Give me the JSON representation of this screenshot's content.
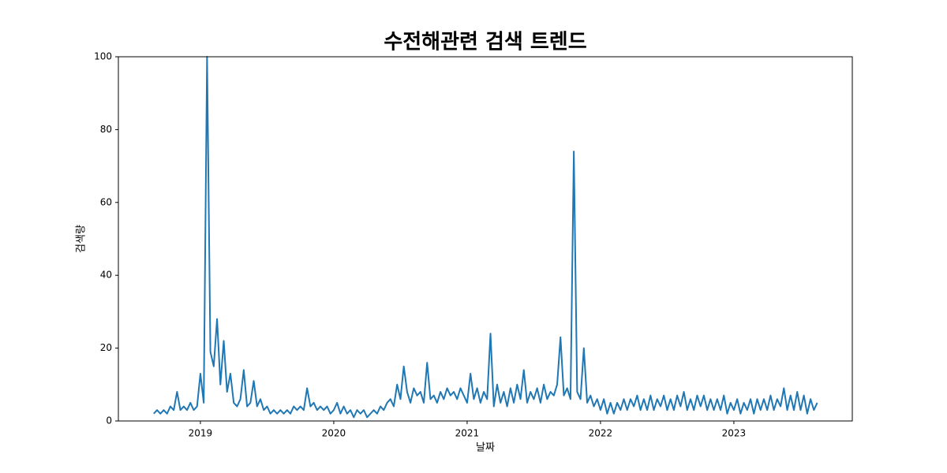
{
  "chart_data": {
    "type": "line",
    "title": "수전해관련 검색 트렌드",
    "xlabel": "날짜",
    "ylabel": "검색량",
    "x": [
      2018.65,
      2018.675,
      2018.7,
      2018.725,
      2018.75,
      2018.775,
      2018.8,
      2018.825,
      2018.85,
      2018.875,
      2018.9,
      2018.925,
      2018.95,
      2018.975,
      2019.0,
      2019.025,
      2019.05,
      2019.075,
      2019.1,
      2019.125,
      2019.15,
      2019.175,
      2019.2,
      2019.225,
      2019.25,
      2019.275,
      2019.3,
      2019.325,
      2019.35,
      2019.375,
      2019.4,
      2019.425,
      2019.45,
      2019.475,
      2019.5,
      2019.525,
      2019.55,
      2019.575,
      2019.6,
      2019.625,
      2019.65,
      2019.675,
      2019.7,
      2019.725,
      2019.75,
      2019.775,
      2019.8,
      2019.825,
      2019.85,
      2019.875,
      2019.9,
      2019.925,
      2019.95,
      2019.975,
      2020.0,
      2020.025,
      2020.05,
      2020.075,
      2020.1,
      2020.125,
      2020.15,
      2020.175,
      2020.2,
      2020.225,
      2020.25,
      2020.275,
      2020.3,
      2020.325,
      2020.35,
      2020.375,
      2020.4,
      2020.425,
      2020.45,
      2020.475,
      2020.5,
      2020.525,
      2020.55,
      2020.575,
      2020.6,
      2020.625,
      2020.65,
      2020.675,
      2020.7,
      2020.725,
      2020.75,
      2020.775,
      2020.8,
      2020.825,
      2020.85,
      2020.875,
      2020.9,
      2020.925,
      2020.95,
      2020.975,
      2021.0,
      2021.025,
      2021.05,
      2021.075,
      2021.1,
      2021.125,
      2021.15,
      2021.175,
      2021.2,
      2021.225,
      2021.25,
      2021.275,
      2021.3,
      2021.325,
      2021.35,
      2021.375,
      2021.4,
      2021.425,
      2021.45,
      2021.475,
      2021.5,
      2021.525,
      2021.55,
      2021.575,
      2021.6,
      2021.625,
      2021.65,
      2021.675,
      2021.7,
      2021.725,
      2021.75,
      2021.775,
      2021.8,
      2021.825,
      2021.85,
      2021.875,
      2021.9,
      2021.925,
      2021.95,
      2021.975,
      2022.0,
      2022.025,
      2022.05,
      2022.075,
      2022.1,
      2022.125,
      2022.15,
      2022.175,
      2022.2,
      2022.225,
      2022.25,
      2022.275,
      2022.3,
      2022.325,
      2022.35,
      2022.375,
      2022.4,
      2022.425,
      2022.45,
      2022.475,
      2022.5,
      2022.525,
      2022.55,
      2022.575,
      2022.6,
      2022.625,
      2022.65,
      2022.675,
      2022.7,
      2022.725,
      2022.75,
      2022.775,
      2022.8,
      2022.825,
      2022.85,
      2022.875,
      2022.9,
      2022.925,
      2022.95,
      2022.975,
      2023.0,
      2023.025,
      2023.05,
      2023.075,
      2023.1,
      2023.125,
      2023.15,
      2023.175,
      2023.2,
      2023.225,
      2023.25,
      2023.275,
      2023.3,
      2023.325,
      2023.35,
      2023.375,
      2023.4,
      2023.425,
      2023.45,
      2023.475,
      2023.5,
      2023.525,
      2023.55,
      2023.575,
      2023.6,
      2023.625
    ],
    "series": [
      {
        "name": "검색량",
        "color": "#1f77b4",
        "values": [
          2,
          3,
          2,
          3,
          2,
          4,
          3,
          8,
          3,
          4,
          3,
          5,
          3,
          4,
          13,
          5,
          100,
          19,
          15,
          28,
          10,
          22,
          8,
          13,
          5,
          4,
          6,
          14,
          4,
          5,
          11,
          4,
          6,
          3,
          4,
          2,
          3,
          2,
          3,
          2,
          3,
          2,
          4,
          3,
          4,
          3,
          9,
          4,
          5,
          3,
          4,
          3,
          4,
          2,
          3,
          5,
          2,
          4,
          2,
          3,
          1,
          3,
          2,
          3,
          1,
          2,
          3,
          2,
          4,
          3,
          5,
          6,
          4,
          10,
          6,
          15,
          8,
          5,
          9,
          7,
          8,
          5,
          16,
          6,
          7,
          5,
          8,
          6,
          9,
          7,
          8,
          6,
          9,
          7,
          5,
          13,
          6,
          9,
          5,
          8,
          6,
          24,
          4,
          10,
          5,
          8,
          4,
          9,
          5,
          10,
          6,
          14,
          5,
          8,
          6,
          9,
          5,
          10,
          6,
          8,
          7,
          10,
          23,
          7,
          9,
          6,
          74,
          8,
          6,
          20,
          5,
          7,
          4,
          6,
          3,
          6,
          2,
          5,
          2,
          5,
          3,
          6,
          3,
          6,
          4,
          7,
          3,
          6,
          3,
          7,
          3,
          6,
          4,
          7,
          3,
          6,
          3,
          7,
          4,
          8,
          3,
          6,
          3,
          7,
          4,
          7,
          3,
          6,
          3,
          6,
          3,
          7,
          2,
          5,
          3,
          6,
          2,
          5,
          3,
          6,
          2,
          6,
          3,
          6,
          3,
          7,
          3,
          6,
          4,
          9,
          3,
          7,
          3,
          8,
          3,
          7,
          2,
          6,
          3,
          5
        ]
      }
    ],
    "xlim": [
      2018.385,
      2023.888
    ],
    "xticks": [
      2019,
      2020,
      2021,
      2022,
      2023
    ],
    "ylim": [
      0,
      100
    ],
    "yticks": [
      0,
      20,
      40,
      60,
      80,
      100
    ],
    "grid": false
  }
}
